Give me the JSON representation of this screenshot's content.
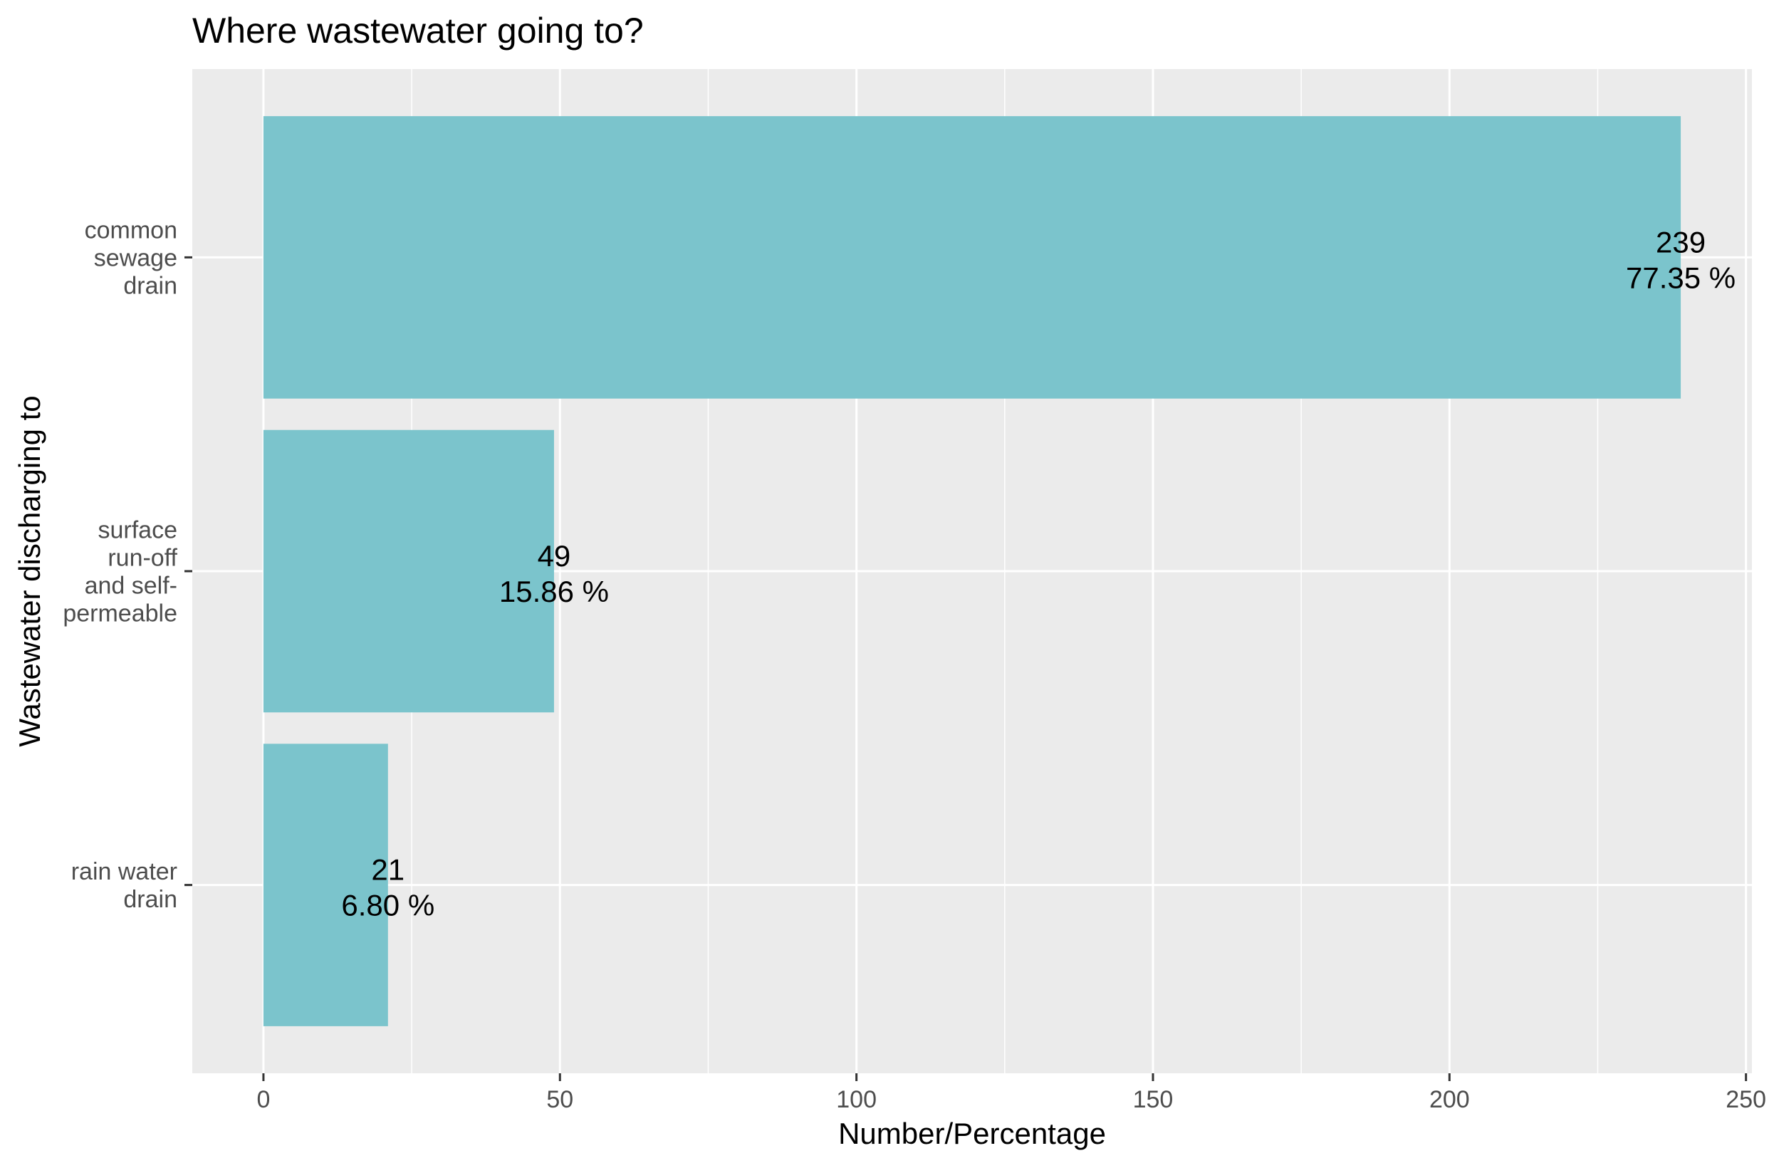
{
  "chart_data": {
    "type": "bar",
    "orientation": "horizontal",
    "title": "Where wastewater going to?",
    "xlabel": "Number/Percentage",
    "ylabel": "Wastewater discharging to",
    "categories": [
      "common sewage drain",
      "surface run-off and self-permeable",
      "rain water drain"
    ],
    "category_lines": [
      [
        "common",
        "sewage",
        "drain"
      ],
      [
        "surface",
        "run-off",
        "and self-",
        "permeable"
      ],
      [
        "rain water",
        "drain"
      ]
    ],
    "values": [
      239,
      49,
      21
    ],
    "value_labels": [
      "239",
      "49",
      "21"
    ],
    "percent_labels": [
      "77.35 %",
      "15.86 %",
      "6.80 %"
    ],
    "xlim": [
      -12,
      251
    ],
    "xticks": [
      0,
      50,
      100,
      150,
      200,
      250
    ],
    "xtick_labels": [
      "0",
      "50",
      "100",
      "150",
      "200",
      "250"
    ],
    "grid": true,
    "legend": "none",
    "colors": {
      "bar": "#7bc4cc",
      "panel": "#ebebeb",
      "grid": "#ffffff"
    }
  }
}
